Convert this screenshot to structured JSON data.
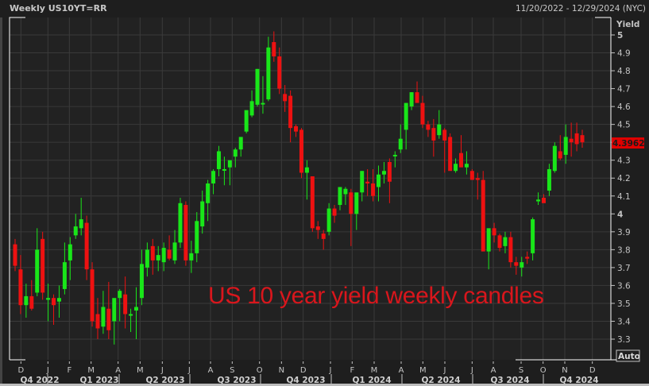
{
  "header": {
    "title": "Weekly US10YT=RR",
    "date_range": "11/20/2022 - 12/29/2024 (NYC)"
  },
  "axis": {
    "y_title": "Yield",
    "y_ticks": [
      "5",
      "4.9",
      "4.8",
      "4.7",
      "4.6",
      "4.5",
      "4.4",
      "4.3",
      "4.2",
      "4.1",
      "4",
      "3.9",
      "3.8",
      "3.7",
      "3.6",
      "3.5",
      "3.4",
      "3.3"
    ],
    "last_price": "4.3962",
    "auto_label": "Auto",
    "months": [
      "D",
      "J",
      "F",
      "M",
      "A",
      "M",
      "J",
      "J",
      "A",
      "S",
      "O",
      "N",
      "D",
      "J",
      "F",
      "M",
      "A",
      "M",
      "J",
      "J",
      "A",
      "S",
      "O",
      "N",
      "D"
    ],
    "quarters": [
      "Q4 2022",
      "Q1 2023",
      "Q2 2023",
      "Q3 2023",
      "Q4 2023",
      "Q1 2024",
      "Q2 2024",
      "Q3 2024",
      "Q4 2024"
    ]
  },
  "annotation": "US 10 year yield weekly candles",
  "colors": {
    "up": "#19e619",
    "down": "#ee1111",
    "background": "#222222",
    "grid": "#3a3a3a",
    "price_tag": "#e00000",
    "annotation": "#d9161c"
  },
  "chart_data": {
    "type": "candlestick",
    "title": "Weekly US10YT=RR",
    "subtitle": "11/20/2022 - 12/29/2024 (NYC)",
    "ylabel": "Yield",
    "ylim": [
      3.25,
      5.05
    ],
    "y_ticks": [
      3.3,
      3.4,
      3.5,
      3.6,
      3.7,
      3.8,
      3.9,
      4.0,
      4.1,
      4.2,
      4.3,
      4.4,
      4.5,
      4.6,
      4.7,
      4.8,
      4.9,
      5.0
    ],
    "x_tick_labels": [
      "D",
      "J",
      "F",
      "M",
      "A",
      "M",
      "J",
      "J",
      "A",
      "S",
      "O",
      "N",
      "D",
      "J",
      "F",
      "M",
      "A",
      "M",
      "J",
      "J",
      "A",
      "S",
      "O",
      "N",
      "D"
    ],
    "x_quarters": [
      "Q4 2022",
      "Q1 2023",
      "Q2 2023",
      "Q3 2023",
      "Q4 2023",
      "Q1 2024",
      "Q2 2024",
      "Q3 2024",
      "Q4 2024"
    ],
    "grid": true,
    "last_value": 4.3962,
    "annotation": "US 10 year yield weekly candles",
    "candles": [
      {
        "o": 3.83,
        "h": 3.86,
        "l": 3.68,
        "c": 3.71
      },
      {
        "o": 3.69,
        "h": 3.77,
        "l": 3.44,
        "c": 3.49
      },
      {
        "o": 3.49,
        "h": 3.61,
        "l": 3.42,
        "c": 3.54
      },
      {
        "o": 3.54,
        "h": 3.63,
        "l": 3.46,
        "c": 3.47
      },
      {
        "o": 3.56,
        "h": 3.92,
        "l": 3.54,
        "c": 3.8
      },
      {
        "o": 3.86,
        "h": 3.9,
        "l": 3.52,
        "c": 3.56
      },
      {
        "o": 3.52,
        "h": 3.61,
        "l": 3.4,
        "c": 3.53
      },
      {
        "o": 3.53,
        "h": 3.55,
        "l": 3.38,
        "c": 3.49
      },
      {
        "o": 3.51,
        "h": 3.6,
        "l": 3.42,
        "c": 3.53
      },
      {
        "o": 3.58,
        "h": 3.84,
        "l": 3.55,
        "c": 3.73
      },
      {
        "o": 3.74,
        "h": 3.87,
        "l": 3.63,
        "c": 3.83
      },
      {
        "o": 3.88,
        "h": 4.0,
        "l": 3.86,
        "c": 3.93
      },
      {
        "o": 3.92,
        "h": 4.09,
        "l": 3.88,
        "c": 3.97
      },
      {
        "o": 3.95,
        "h": 3.99,
        "l": 3.63,
        "c": 3.69
      },
      {
        "o": 3.69,
        "h": 3.73,
        "l": 3.37,
        "c": 3.4
      },
      {
        "o": 3.44,
        "h": 3.53,
        "l": 3.3,
        "c": 3.36
      },
      {
        "o": 3.37,
        "h": 3.57,
        "l": 3.33,
        "c": 3.48
      },
      {
        "o": 3.47,
        "h": 3.62,
        "l": 3.3,
        "c": 3.35
      },
      {
        "o": 3.4,
        "h": 3.5,
        "l": 3.27,
        "c": 3.53
      },
      {
        "o": 3.53,
        "h": 3.58,
        "l": 3.4,
        "c": 3.57
      },
      {
        "o": 3.55,
        "h": 3.65,
        "l": 3.36,
        "c": 3.44
      },
      {
        "o": 3.44,
        "h": 3.47,
        "l": 3.34,
        "c": 3.44
      },
      {
        "o": 3.46,
        "h": 3.59,
        "l": 3.3,
        "c": 3.48
      },
      {
        "o": 3.53,
        "h": 3.8,
        "l": 3.49,
        "c": 3.72
      },
      {
        "o": 3.7,
        "h": 3.84,
        "l": 3.65,
        "c": 3.8
      },
      {
        "o": 3.82,
        "h": 3.86,
        "l": 3.66,
        "c": 3.74
      },
      {
        "o": 3.74,
        "h": 3.82,
        "l": 3.68,
        "c": 3.77
      },
      {
        "o": 3.73,
        "h": 3.84,
        "l": 3.68,
        "c": 3.81
      },
      {
        "o": 3.8,
        "h": 3.88,
        "l": 3.74,
        "c": 3.75
      },
      {
        "o": 3.74,
        "h": 3.91,
        "l": 3.72,
        "c": 3.84
      },
      {
        "o": 3.84,
        "h": 4.09,
        "l": 3.81,
        "c": 4.06
      },
      {
        "o": 4.05,
        "h": 4.07,
        "l": 3.71,
        "c": 3.74
      },
      {
        "o": 3.74,
        "h": 3.85,
        "l": 3.67,
        "c": 3.78
      },
      {
        "o": 3.78,
        "h": 4.01,
        "l": 3.73,
        "c": 3.96
      },
      {
        "o": 3.93,
        "h": 4.13,
        "l": 3.89,
        "c": 4.07
      },
      {
        "o": 4.06,
        "h": 4.19,
        "l": 3.96,
        "c": 4.17
      },
      {
        "o": 4.17,
        "h": 4.25,
        "l": 4.11,
        "c": 4.24
      },
      {
        "o": 4.25,
        "h": 4.38,
        "l": 4.21,
        "c": 4.35
      },
      {
        "o": 4.25,
        "h": 4.32,
        "l": 4.16,
        "c": 4.25
      },
      {
        "o": 4.26,
        "h": 4.29,
        "l": 4.16,
        "c": 4.3
      },
      {
        "o": 4.32,
        "h": 4.37,
        "l": 4.26,
        "c": 4.36
      },
      {
        "o": 4.36,
        "h": 4.43,
        "l": 4.32,
        "c": 4.43
      },
      {
        "o": 4.46,
        "h": 4.56,
        "l": 4.45,
        "c": 4.58
      },
      {
        "o": 4.55,
        "h": 4.69,
        "l": 4.54,
        "c": 4.63
      },
      {
        "o": 4.61,
        "h": 4.81,
        "l": 4.6,
        "c": 4.81
      },
      {
        "o": 4.62,
        "h": 4.77,
        "l": 4.56,
        "c": 4.62
      },
      {
        "o": 4.64,
        "h": 4.99,
        "l": 4.63,
        "c": 4.93
      },
      {
        "o": 4.96,
        "h": 5.02,
        "l": 4.85,
        "c": 4.88
      },
      {
        "o": 4.88,
        "h": 4.93,
        "l": 4.67,
        "c": 4.7
      },
      {
        "o": 4.67,
        "h": 4.72,
        "l": 4.57,
        "c": 4.63
      },
      {
        "o": 4.66,
        "h": 4.69,
        "l": 4.4,
        "c": 4.48
      },
      {
        "o": 4.49,
        "h": 4.5,
        "l": 4.43,
        "c": 4.46
      },
      {
        "o": 4.47,
        "h": 4.48,
        "l": 4.2,
        "c": 4.23
      },
      {
        "o": 4.23,
        "h": 4.3,
        "l": 4.08,
        "c": 4.26
      },
      {
        "o": 4.21,
        "h": 4.21,
        "l": 3.9,
        "c": 3.92
      },
      {
        "o": 3.93,
        "h": 3.96,
        "l": 3.86,
        "c": 3.91
      },
      {
        "o": 3.89,
        "h": 3.91,
        "l": 3.8,
        "c": 3.86
      },
      {
        "o": 3.9,
        "h": 4.06,
        "l": 3.88,
        "c": 4.03
      },
      {
        "o": 4.03,
        "h": 4.05,
        "l": 3.95,
        "c": 3.99
      },
      {
        "o": 4.05,
        "h": 4.15,
        "l": 4.02,
        "c": 4.15
      },
      {
        "o": 4.11,
        "h": 4.15,
        "l": 4.05,
        "c": 4.14
      },
      {
        "o": 4.12,
        "h": 4.14,
        "l": 3.82,
        "c": 4.0
      },
      {
        "o": 4.0,
        "h": 4.1,
        "l": 3.91,
        "c": 4.12
      },
      {
        "o": 4.12,
        "h": 4.24,
        "l": 4.07,
        "c": 4.24
      },
      {
        "o": 4.18,
        "h": 4.25,
        "l": 4.1,
        "c": 4.17
      },
      {
        "o": 4.17,
        "h": 4.25,
        "l": 4.07,
        "c": 4.1
      },
      {
        "o": 4.15,
        "h": 4.27,
        "l": 4.07,
        "c": 4.22
      },
      {
        "o": 4.22,
        "h": 4.29,
        "l": 4.17,
        "c": 4.24
      },
      {
        "o": 4.29,
        "h": 4.31,
        "l": 4.06,
        "c": 4.18
      },
      {
        "o": 4.33,
        "h": 4.35,
        "l": 4.26,
        "c": 4.33
      },
      {
        "o": 4.36,
        "h": 4.5,
        "l": 4.34,
        "c": 4.42
      },
      {
        "o": 4.47,
        "h": 4.62,
        "l": 4.36,
        "c": 4.62
      },
      {
        "o": 4.6,
        "h": 4.68,
        "l": 4.58,
        "c": 4.68
      },
      {
        "o": 4.68,
        "h": 4.74,
        "l": 4.66,
        "c": 4.62
      },
      {
        "o": 4.62,
        "h": 4.66,
        "l": 4.48,
        "c": 4.5
      },
      {
        "o": 4.5,
        "h": 4.52,
        "l": 4.43,
        "c": 4.47
      },
      {
        "o": 4.48,
        "h": 4.53,
        "l": 4.32,
        "c": 4.41
      },
      {
        "o": 4.44,
        "h": 4.58,
        "l": 4.42,
        "c": 4.5
      },
      {
        "o": 4.47,
        "h": 4.48,
        "l": 4.23,
        "c": 4.41
      },
      {
        "o": 4.43,
        "h": 4.45,
        "l": 4.25,
        "c": 4.24
      },
      {
        "o": 4.24,
        "h": 4.31,
        "l": 4.23,
        "c": 4.28
      },
      {
        "o": 4.34,
        "h": 4.44,
        "l": 4.27,
        "c": 4.26
      },
      {
        "o": 4.26,
        "h": 4.35,
        "l": 4.22,
        "c": 4.28
      },
      {
        "o": 4.24,
        "h": 4.25,
        "l": 4.21,
        "c": 4.19
      },
      {
        "o": 4.2,
        "h": 4.23,
        "l": 4.08,
        "c": 4.19
      },
      {
        "o": 4.19,
        "h": 4.24,
        "l": 3.89,
        "c": 3.79
      },
      {
        "o": 3.79,
        "h": 3.83,
        "l": 3.69,
        "c": 3.92
      },
      {
        "o": 3.92,
        "h": 3.95,
        "l": 3.84,
        "c": 3.88
      },
      {
        "o": 3.88,
        "h": 3.89,
        "l": 3.79,
        "c": 3.81
      },
      {
        "o": 3.82,
        "h": 3.9,
        "l": 3.78,
        "c": 3.87
      },
      {
        "o": 3.87,
        "h": 3.9,
        "l": 3.7,
        "c": 3.73
      },
      {
        "o": 3.73,
        "h": 3.76,
        "l": 3.66,
        "c": 3.71
      },
      {
        "o": 3.7,
        "h": 3.76,
        "l": 3.65,
        "c": 3.73
      },
      {
        "o": 3.76,
        "h": 3.79,
        "l": 3.72,
        "c": 3.75
      },
      {
        "o": 3.78,
        "h": 3.98,
        "l": 3.74,
        "c": 3.97
      },
      {
        "o": 4.07,
        "h": 4.12,
        "l": 4.05,
        "c": 4.08
      },
      {
        "o": 4.09,
        "h": 4.11,
        "l": 4.08,
        "c": 4.06
      },
      {
        "o": 4.13,
        "h": 4.28,
        "l": 4.1,
        "c": 4.25
      },
      {
        "o": 4.24,
        "h": 4.4,
        "l": 4.23,
        "c": 4.38
      },
      {
        "o": 4.35,
        "h": 4.44,
        "l": 4.3,
        "c": 4.31
      },
      {
        "o": 4.33,
        "h": 4.5,
        "l": 4.28,
        "c": 4.43
      },
      {
        "o": 4.42,
        "h": 4.51,
        "l": 4.32,
        "c": 4.4
      },
      {
        "o": 4.45,
        "h": 4.51,
        "l": 4.35,
        "c": 4.39
      },
      {
        "o": 4.44,
        "h": 4.47,
        "l": 4.37,
        "c": 4.4
      }
    ]
  }
}
